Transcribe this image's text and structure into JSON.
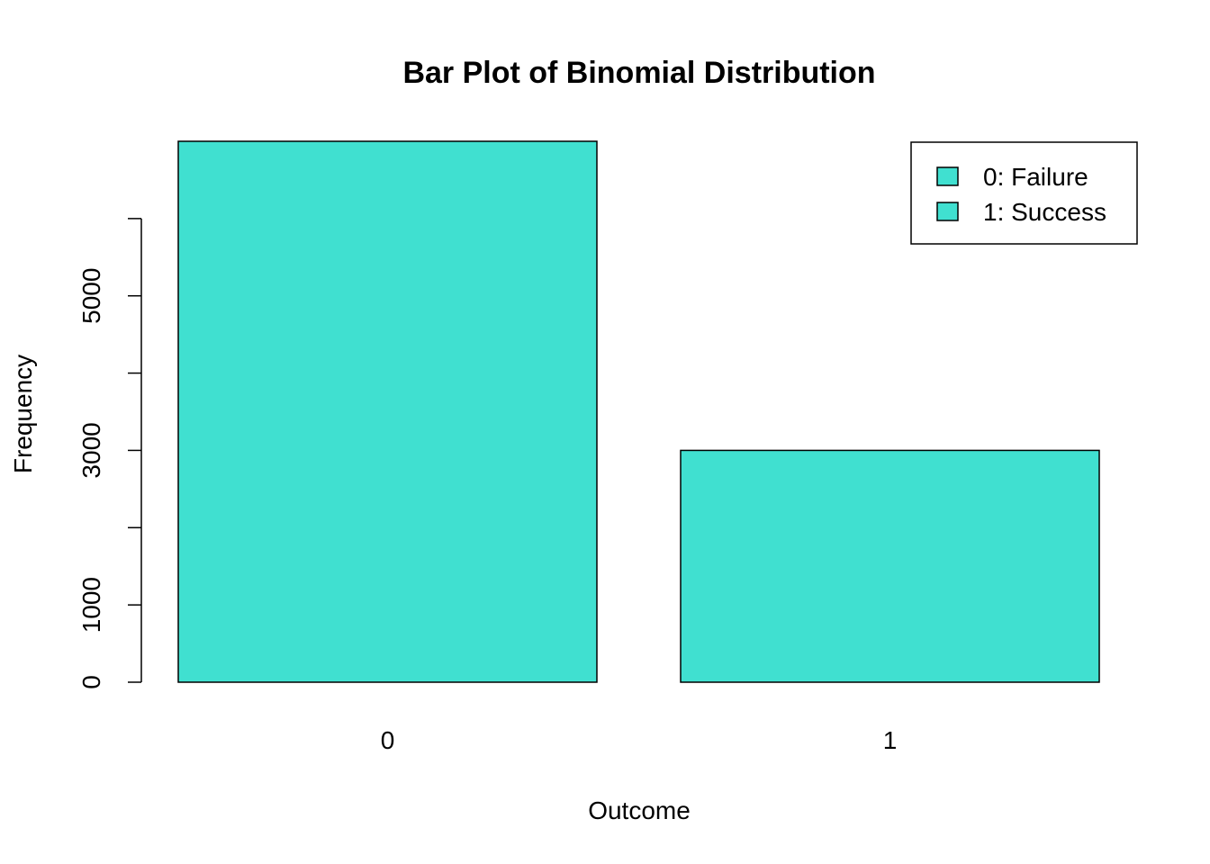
{
  "chart_data": {
    "type": "bar",
    "title": "Bar Plot of Binomial Distribution",
    "xlabel": "Outcome",
    "ylabel": "Frequency",
    "categories": [
      "0",
      "1"
    ],
    "values": [
      7000,
      3000
    ],
    "ylim": [
      0,
      7000
    ],
    "yticks": [
      0,
      1000,
      2000,
      3000,
      4000,
      5000,
      6000
    ],
    "ytick_labels": [
      "0",
      "1000",
      "",
      "3000",
      "",
      "5000",
      ""
    ],
    "bar_color": "#40E0D0",
    "bar_border_color": "#000000",
    "grid": false,
    "legend": {
      "placement": "top-right",
      "entries": [
        "0: Failure",
        "1: Success"
      ]
    }
  }
}
